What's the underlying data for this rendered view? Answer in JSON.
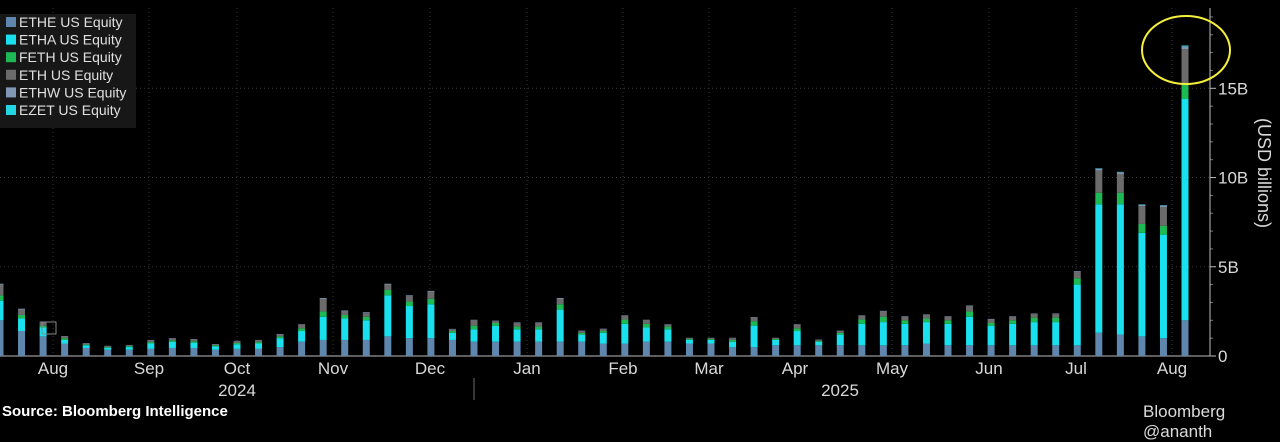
{
  "chart_data": {
    "type": "bar",
    "stacked": true,
    "ylabel": "(USD billions)",
    "ylim": [
      0,
      19.5
    ],
    "y_ticks": [
      0,
      5,
      10,
      15
    ],
    "y_tick_labels": [
      "0",
      "5B",
      "10B",
      "15B"
    ],
    "grid": "dotted, horizontal and vertical",
    "legend_position": "top-left",
    "series": [
      {
        "name": "ETHE US Equity",
        "color": "#5f87ad",
        "values": [
          2.0,
          1.4,
          1.1,
          0.7,
          0.45,
          0.35,
          0.35,
          0.4,
          0.45,
          0.45,
          0.35,
          0.4,
          0.4,
          0.5,
          0.8,
          0.9,
          0.9,
          0.9,
          1.1,
          1.0,
          1.0,
          0.9,
          0.8,
          0.8,
          0.8,
          0.8,
          0.8,
          0.8,
          0.7,
          0.7,
          0.8,
          0.8,
          0.7,
          0.7,
          0.5,
          0.5,
          0.6,
          0.6,
          0.6,
          0.6,
          0.6,
          0.6,
          0.6,
          0.7,
          0.6,
          0.6,
          0.6,
          0.6,
          0.6,
          0.6,
          0.6,
          1.3,
          1.2,
          1.1,
          1.0,
          2.0
        ]
      },
      {
        "name": "ETHA US Equity",
        "color": "#19e0ee",
        "values": [
          1.1,
          0.7,
          0.5,
          0.2,
          0.15,
          0.1,
          0.15,
          0.3,
          0.35,
          0.3,
          0.2,
          0.25,
          0.3,
          0.5,
          0.6,
          1.3,
          1.2,
          1.1,
          2.3,
          1.8,
          1.9,
          0.4,
          0.7,
          0.9,
          0.7,
          0.7,
          1.8,
          0.4,
          0.6,
          1.1,
          0.8,
          0.7,
          0.2,
          0.2,
          0.3,
          1.2,
          0.3,
          0.8,
          0.2,
          0.6,
          1.2,
          1.3,
          1.2,
          1.2,
          1.2,
          1.6,
          1.1,
          1.2,
          1.3,
          1.3,
          3.4,
          7.2,
          7.3,
          5.8,
          5.8,
          12.4
        ]
      },
      {
        "name": "FETH US Equity",
        "color": "#1db954",
        "values": [
          0.3,
          0.2,
          0.1,
          0.1,
          0.05,
          0.05,
          0.05,
          0.08,
          0.08,
          0.08,
          0.05,
          0.08,
          0.08,
          0.1,
          0.15,
          0.3,
          0.2,
          0.2,
          0.3,
          0.25,
          0.3,
          0.1,
          0.2,
          0.15,
          0.15,
          0.15,
          0.3,
          0.1,
          0.1,
          0.25,
          0.2,
          0.15,
          0.05,
          0.05,
          0.1,
          0.25,
          0.05,
          0.15,
          0.05,
          0.1,
          0.25,
          0.3,
          0.2,
          0.2,
          0.2,
          0.3,
          0.15,
          0.2,
          0.25,
          0.25,
          0.35,
          0.65,
          0.65,
          0.5,
          0.5,
          0.85
        ]
      },
      {
        "name": "ETH US Equity",
        "color": "#6b6b6b",
        "values": [
          0.6,
          0.3,
          0.2,
          0.1,
          0.05,
          0.05,
          0.05,
          0.1,
          0.1,
          0.1,
          0.05,
          0.1,
          0.1,
          0.1,
          0.2,
          0.7,
          0.2,
          0.2,
          0.3,
          0.3,
          0.4,
          0.1,
          0.3,
          0.1,
          0.2,
          0.2,
          0.3,
          0.1,
          0.1,
          0.2,
          0.2,
          0.1,
          0.05,
          0.05,
          0.1,
          0.2,
          0.05,
          0.2,
          0.05,
          0.1,
          0.2,
          0.3,
          0.2,
          0.2,
          0.2,
          0.3,
          0.2,
          0.2,
          0.2,
          0.2,
          0.35,
          1.25,
          1.05,
          1.0,
          1.05,
          1.95
        ]
      },
      {
        "name": "ETHW US Equity",
        "color": "#8098b4",
        "values": [
          0.05,
          0.05,
          0.03,
          0.02,
          0.02,
          0.02,
          0.02,
          0.02,
          0.02,
          0.02,
          0.02,
          0.02,
          0.02,
          0.03,
          0.03,
          0.05,
          0.05,
          0.05,
          0.05,
          0.05,
          0.05,
          0.02,
          0.03,
          0.03,
          0.03,
          0.03,
          0.05,
          0.02,
          0.03,
          0.03,
          0.03,
          0.03,
          0.02,
          0.02,
          0.02,
          0.03,
          0.02,
          0.03,
          0.02,
          0.02,
          0.03,
          0.03,
          0.03,
          0.03,
          0.03,
          0.03,
          0.03,
          0.03,
          0.03,
          0.03,
          0.05,
          0.1,
          0.1,
          0.08,
          0.08,
          0.15
        ]
      },
      {
        "name": "EZET US Equity",
        "color": "#22d6e3",
        "values": [
          0,
          0,
          0,
          0,
          0,
          0,
          0,
          0,
          0,
          0,
          0,
          0,
          0,
          0,
          0,
          0,
          0,
          0,
          0,
          0,
          0,
          0,
          0,
          0,
          0,
          0,
          0,
          0,
          0,
          0,
          0,
          0,
          0,
          0,
          0,
          0,
          0,
          0,
          0,
          0,
          0,
          0,
          0,
          0,
          0,
          0,
          0,
          0,
          0,
          0,
          0,
          0.02,
          0.02,
          0.02,
          0.02,
          0.05
        ]
      }
    ],
    "x_month_labels": [
      "Aug",
      "Sep",
      "Oct",
      "Nov",
      "Dec",
      "Jan",
      "Feb",
      "Mar",
      "Apr",
      "May",
      "Jun",
      "Jul",
      "Aug"
    ],
    "x_year_labels": [
      "2024",
      "2025"
    ],
    "annotation": "yellow circle highlighting latest bar"
  },
  "source": "Source: Bloomberg Intelligence",
  "watermark": "Bloomberg @ananth"
}
